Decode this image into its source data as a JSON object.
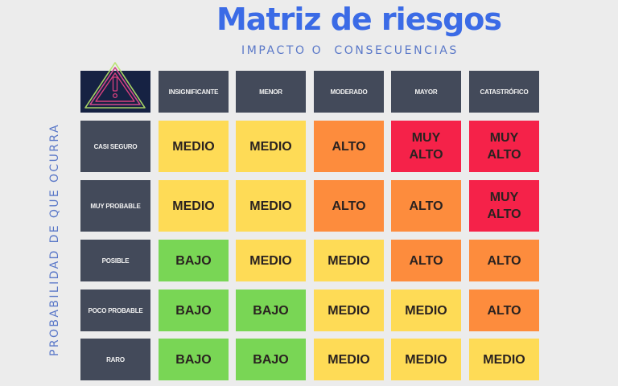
{
  "header": {
    "title": "Matriz de riesgos",
    "x_axis_label": "IMPACTO O  CONSECUENCIAS",
    "y_axis_label": "PROBABILIDAD DE QUE OCURRA"
  },
  "corner_icon": "warning-triangle-icon",
  "columns": [
    "INSIGNIFICANTE",
    "MENOR",
    "MODERADO",
    "MAYOR",
    "CATASTRÓFICO"
  ],
  "rows": [
    {
      "label": "CASI SEGURO",
      "cells": [
        {
          "text": "MEDIO",
          "level": "medio"
        },
        {
          "text": "MEDIO",
          "level": "medio"
        },
        {
          "text": "ALTO",
          "level": "alto"
        },
        {
          "text": "MUY ALTO",
          "level": "muy_alto"
        },
        {
          "text": "MUY ALTO",
          "level": "muy_alto"
        }
      ]
    },
    {
      "label": "MUY PROBABLE",
      "cells": [
        {
          "text": "MEDIO",
          "level": "medio"
        },
        {
          "text": "MEDIO",
          "level": "medio"
        },
        {
          "text": "ALTO",
          "level": "alto"
        },
        {
          "text": "ALTO",
          "level": "alto"
        },
        {
          "text": "MUY ALTO",
          "level": "muy_alto"
        }
      ]
    },
    {
      "label": "POSIBLE",
      "cells": [
        {
          "text": "BAJO",
          "level": "bajo"
        },
        {
          "text": "MEDIO",
          "level": "medio"
        },
        {
          "text": "MEDIO",
          "level": "medio"
        },
        {
          "text": "ALTO",
          "level": "alto"
        },
        {
          "text": "ALTO",
          "level": "alto"
        }
      ]
    },
    {
      "label": "POCO PROBABLE",
      "cells": [
        {
          "text": "BAJO",
          "level": "bajo"
        },
        {
          "text": "BAJO",
          "level": "bajo"
        },
        {
          "text": "MEDIO",
          "level": "medio"
        },
        {
          "text": "MEDIO",
          "level": "medio"
        },
        {
          "text": "ALTO",
          "level": "alto"
        }
      ]
    },
    {
      "label": "RARO",
      "cells": [
        {
          "text": "BAJO",
          "level": "bajo"
        },
        {
          "text": "BAJO",
          "level": "bajo"
        },
        {
          "text": "MEDIO",
          "level": "medio"
        },
        {
          "text": "MEDIO",
          "level": "medio"
        },
        {
          "text": "MEDIO",
          "level": "medio"
        }
      ]
    }
  ],
  "colors": {
    "bajo": "#79d655",
    "medio": "#fedb56",
    "alto": "#fd8c3d",
    "muy_alto": "#f52249",
    "header_cell": "#434a5a",
    "corner_cell": "#162243",
    "title": "#3b6be6",
    "axis_label": "#5a78c8"
  }
}
